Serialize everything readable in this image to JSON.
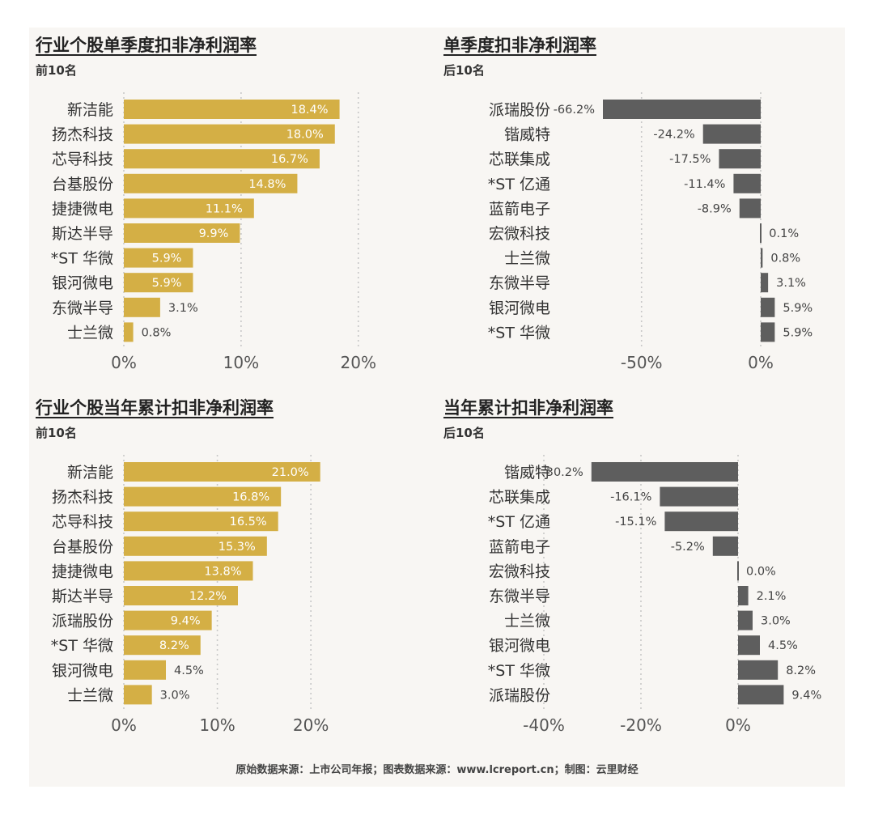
{
  "colors": {
    "top": "#d4af45",
    "bottom": "#5e5e5e",
    "grid": "#c8c8c8",
    "axis_text": "#555555",
    "category_text": "#333333",
    "value_text": "#444444",
    "inner_label": "#ffffff"
  },
  "footer": "原始数据来源：上市公司年报；图表数据来源：www.lcreport.cn；制图：云里财经",
  "chart_data": [
    {
      "type": "bar",
      "orientation": "horizontal",
      "title": "行业个股单季度扣非净利润率",
      "subtitle": "前10名",
      "categories": [
        "新洁能",
        "扬杰科技",
        "芯导科技",
        "台基股份",
        "捷捷微电",
        "斯达半导",
        "*ST 华微",
        "银河微电",
        "东微半导",
        "士兰微"
      ],
      "values": [
        18.4,
        18.0,
        16.7,
        14.8,
        11.1,
        9.9,
        5.9,
        5.9,
        3.1,
        0.8
      ],
      "value_labels": [
        "18.4%",
        "18.0%",
        "16.7%",
        "14.8%",
        "11.1%",
        "9.9%",
        "5.9%",
        "5.9%",
        "3.1%",
        "0.8%"
      ],
      "x_ticks": [
        0,
        10,
        20
      ],
      "x_tick_labels": [
        "0%",
        "10%",
        "20%"
      ],
      "xlim": [
        0,
        20.5
      ],
      "grid": true,
      "color_key": "top"
    },
    {
      "type": "bar",
      "orientation": "horizontal",
      "title": "单季度扣非净利润率",
      "subtitle": "后10名",
      "categories": [
        "派瑞股份",
        "锴威特",
        "芯联集成",
        "*ST 亿通",
        "蓝箭电子",
        "宏微科技",
        "士兰微",
        "东微半导",
        "银河微电",
        "*ST 华微"
      ],
      "values": [
        -66.2,
        -24.2,
        -17.5,
        -11.4,
        -8.9,
        0.1,
        0.8,
        3.1,
        5.9,
        5.9
      ],
      "value_labels": [
        "-66.2%",
        "-24.2%",
        "-17.5%",
        "-11.4%",
        "-8.9%",
        "0.1%",
        "0.8%",
        "3.1%",
        "5.9%",
        "5.9%"
      ],
      "x_ticks": [
        -50,
        0
      ],
      "x_tick_labels": [
        "-50%",
        "0%"
      ],
      "xlim": [
        -66.2,
        0
      ],
      "grid": true,
      "color_key": "bottom"
    },
    {
      "type": "bar",
      "orientation": "horizontal",
      "title": "行业个股当年累计扣非净利润率",
      "subtitle": "前10名",
      "categories": [
        "新洁能",
        "扬杰科技",
        "芯导科技",
        "台基股份",
        "捷捷微电",
        "斯达半导",
        "派瑞股份",
        "*ST 华微",
        "银河微电",
        "士兰微"
      ],
      "values": [
        21.0,
        16.8,
        16.5,
        15.3,
        13.8,
        12.2,
        9.4,
        8.2,
        4.5,
        3.0
      ],
      "value_labels": [
        "21.0%",
        "16.8%",
        "16.5%",
        "15.3%",
        "13.8%",
        "12.2%",
        "9.4%",
        "8.2%",
        "4.5%",
        "3.0%"
      ],
      "x_ticks": [
        0,
        10,
        20
      ],
      "x_tick_labels": [
        "0%",
        "10%",
        "20%"
      ],
      "xlim": [
        0,
        24.4
      ],
      "grid": true,
      "color_key": "top"
    },
    {
      "type": "bar",
      "orientation": "horizontal",
      "title": "当年累计扣非净利润率",
      "subtitle": "后10名",
      "categories": [
        "锴威特",
        "芯联集成",
        "*ST 亿通",
        "蓝箭电子",
        "宏微科技",
        "东微半导",
        "士兰微",
        "银河微电",
        "*ST 华微",
        "派瑞股份"
      ],
      "values": [
        -30.2,
        -16.1,
        -15.1,
        -5.2,
        0.0,
        2.1,
        3.0,
        4.5,
        8.2,
        9.4
      ],
      "value_labels": [
        "-30.2%",
        "-16.1%",
        "-15.1%",
        "-5.2%",
        "0.0%",
        "2.1%",
        "3.0%",
        "4.5%",
        "8.2%",
        "9.4%"
      ],
      "x_ticks": [
        -40,
        -20,
        0
      ],
      "x_tick_labels": [
        "-40%",
        "-20%",
        "0%"
      ],
      "xlim": [
        -40,
        0
      ],
      "grid": true,
      "color_key": "bottom"
    }
  ]
}
